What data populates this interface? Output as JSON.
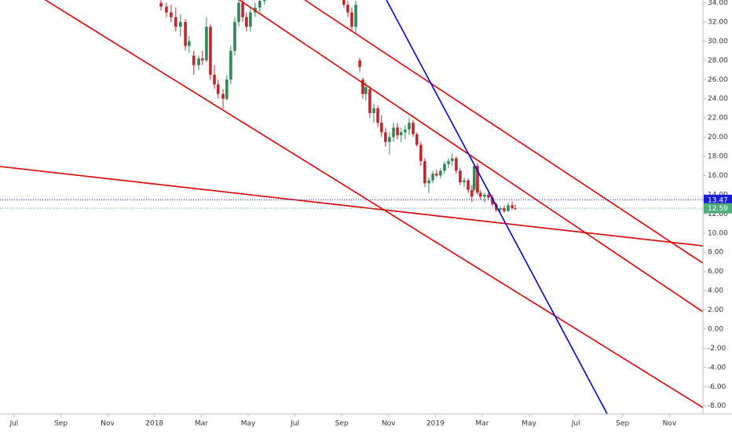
{
  "chart_data": {
    "type": "candlestick",
    "xlim": [
      -0.6,
      29.43
    ],
    "ylim": [
      -8.84,
      34.29
    ],
    "xticks": [
      {
        "value": 0,
        "label": "Jul"
      },
      {
        "value": 2,
        "label": "Sep"
      },
      {
        "value": 4,
        "label": "Nov"
      },
      {
        "value": 6,
        "label": "2018"
      },
      {
        "value": 8,
        "label": "Mar"
      },
      {
        "value": 10,
        "label": "May"
      },
      {
        "value": 12,
        "label": "Jul"
      },
      {
        "value": 14,
        "label": "Sep"
      },
      {
        "value": 16,
        "label": "Nov"
      },
      {
        "value": 18,
        "label": "2019"
      },
      {
        "value": 20,
        "label": "Mar"
      },
      {
        "value": 22,
        "label": "May"
      },
      {
        "value": 24,
        "label": "Jul"
      },
      {
        "value": 26,
        "label": "Sep"
      },
      {
        "value": 28,
        "label": "Nov"
      }
    ],
    "yticks": [
      {
        "value": 34,
        "label": "34.00"
      },
      {
        "value": 32,
        "label": "32.00"
      },
      {
        "value": 30,
        "label": "30.00"
      },
      {
        "value": 28,
        "label": "28.00"
      },
      {
        "value": 26,
        "label": "26.00"
      },
      {
        "value": 24,
        "label": "24.00"
      },
      {
        "value": 22,
        "label": "22.00"
      },
      {
        "value": 20,
        "label": "20.00"
      },
      {
        "value": 18,
        "label": "18.00"
      },
      {
        "value": 16,
        "label": "16.00"
      },
      {
        "value": 14,
        "label": "14.00"
      },
      {
        "value": 12,
        "label": "12.00"
      },
      {
        "value": 10,
        "label": "10.00"
      },
      {
        "value": 8,
        "label": "8.00"
      },
      {
        "value": 6,
        "label": "6.00"
      },
      {
        "value": 4,
        "label": "4.00"
      },
      {
        "value": 2,
        "label": "2.00"
      },
      {
        "value": 0,
        "label": "0.00"
      },
      {
        "value": -2,
        "label": "-2.00"
      },
      {
        "value": -4,
        "label": "-4.00"
      },
      {
        "value": -6,
        "label": "-6.00"
      },
      {
        "value": -8,
        "label": "-8.00"
      }
    ],
    "grid": false,
    "up_color": "#2e8b57",
    "down_color": "#c0272d",
    "x": [
      6.28,
      6.51,
      6.71,
      6.91,
      7.11,
      7.32,
      7.48,
      7.68,
      7.89,
      8.05,
      8.22,
      8.39,
      8.56,
      8.72,
      8.93,
      9.09,
      9.26,
      9.43,
      9.6,
      9.77,
      9.93,
      10.1,
      10.3,
      10.5,
      10.7,
      14.09,
      14.26,
      14.43,
      14.6,
      14.77,
      14.9,
      15.03,
      15.2,
      15.37,
      15.54,
      15.7,
      15.87,
      16.04,
      16.21,
      16.38,
      16.54,
      16.71,
      16.88,
      17.05,
      17.21,
      17.38,
      17.55,
      17.72,
      17.89,
      18.05,
      18.22,
      18.39,
      18.56,
      18.72,
      18.89,
      19.06,
      19.23,
      19.4,
      19.56,
      19.66,
      19.8,
      19.93,
      20.1,
      20.27,
      20.44,
      20.6,
      20.77,
      20.94,
      21.11,
      21.28,
      21.41
    ],
    "open": [
      34,
      33.6,
      33,
      32.5,
      31.5,
      32,
      29.5,
      28.5,
      27.5,
      28.2,
      28,
      31.5,
      26.5,
      25.5,
      24.5,
      24,
      26,
      29,
      32,
      34,
      32.5,
      31.5,
      33,
      33.5,
      34.2,
      34.5,
      33.8,
      33,
      31.5,
      28,
      26,
      24.5,
      25,
      22.5,
      23,
      21.5,
      20.5,
      19.5,
      20,
      21,
      20.2,
      20.5,
      20.8,
      21.5,
      20.3,
      19.2,
      17.5,
      15.2,
      15.5,
      16.2,
      16,
      16.5,
      17.2,
      17.5,
      17.8,
      16.5,
      15.3,
      15.5,
      14.5,
      14.5,
      17,
      14.2,
      13.8,
      14,
      13.7,
      13,
      12.4,
      12.6,
      12.3,
      12.9,
      12.6
    ],
    "high": [
      34.4,
      34,
      33.8,
      33.5,
      32.8,
      32.3,
      30.5,
      29,
      28.5,
      29,
      32.5,
      31.8,
      27.5,
      26,
      25,
      26.5,
      29.5,
      32.5,
      34.5,
      34.8,
      33,
      33.5,
      34,
      34.5,
      35,
      35,
      34.2,
      33.5,
      34.2,
      28.3,
      26.2,
      25.8,
      25.3,
      23.5,
      23.3,
      22.3,
      21,
      20.5,
      21.5,
      21.5,
      21,
      21.2,
      22,
      21.8,
      20.5,
      19.5,
      17.8,
      15.8,
      16.5,
      16.6,
      16.8,
      17.5,
      17.8,
      18.3,
      18,
      16.8,
      15.8,
      15.7,
      15,
      17.2,
      17.3,
      14.5,
      14.2,
      14.5,
      14,
      13.2,
      12.8,
      12.9,
      13.2,
      13.3,
      13
    ],
    "low": [
      33.2,
      32.5,
      32,
      31,
      30.5,
      29,
      28.8,
      26.5,
      27,
      27.5,
      27.8,
      26,
      25,
      24,
      23,
      23.8,
      25.5,
      28.5,
      31.5,
      32,
      31,
      31,
      32.5,
      33,
      33.8,
      33.5,
      32.5,
      31,
      30.8,
      26.8,
      24,
      23.8,
      22,
      21.5,
      21,
      20,
      19,
      18.2,
      19.5,
      19.8,
      19.5,
      19.8,
      20.2,
      20,
      19,
      17,
      14.8,
      14.2,
      15.2,
      15.8,
      15.7,
      16.2,
      16.8,
      17,
      16.2,
      15,
      14.8,
      14.2,
      13.2,
      14.3,
      14,
      13.5,
      13.2,
      13.5,
      12.8,
      12.2,
      12,
      12.1,
      12.2,
      12.4,
      12.4
    ],
    "close": [
      33.6,
      33,
      32.5,
      31.5,
      32,
      29.5,
      30,
      27.5,
      28.2,
      28,
      31.5,
      26.5,
      25.5,
      24.5,
      24,
      26,
      29,
      32,
      34,
      32.5,
      31.5,
      33,
      33.5,
      34.2,
      34.8,
      33.8,
      33,
      31.5,
      33.8,
      27.3,
      24.5,
      25.2,
      22.5,
      23,
      21.5,
      20.5,
      19.5,
      20,
      21,
      20.2,
      20.5,
      20.8,
      21.5,
      20.3,
      19.2,
      17.5,
      15.2,
      15.5,
      16.2,
      16,
      16.5,
      17.2,
      17.5,
      17.8,
      16.5,
      15.3,
      15.5,
      14.5,
      13.8,
      17,
      14.2,
      13.8,
      14,
      13.7,
      13,
      12.4,
      12.6,
      12.3,
      12.9,
      12.6,
      12.59
    ],
    "trend_lines": [
      {
        "color": "#e00000",
        "x": [
          1.34,
          29.43
        ],
        "y": [
          34.29,
          -8.18
        ]
      },
      {
        "color": "#e00000",
        "x": [
          9.63,
          29.43
        ],
        "y": [
          34.29,
          1.8
        ]
      },
      {
        "color": "#e00000",
        "x": [
          12.42,
          29.43
        ],
        "y": [
          34.29,
          6.87
        ]
      },
      {
        "color": "#e00000",
        "x": [
          -0.6,
          29.43
        ],
        "y": [
          16.94,
          8.67
        ]
      },
      {
        "color": "#0000cc",
        "x": [
          15.91,
          25.34
        ],
        "y": [
          34.29,
          -8.84
        ]
      }
    ],
    "price_lines": [
      {
        "value": 13.47,
        "color": "#1a1adb"
      },
      {
        "value": 12.59,
        "color": "#4caf7a"
      }
    ]
  }
}
